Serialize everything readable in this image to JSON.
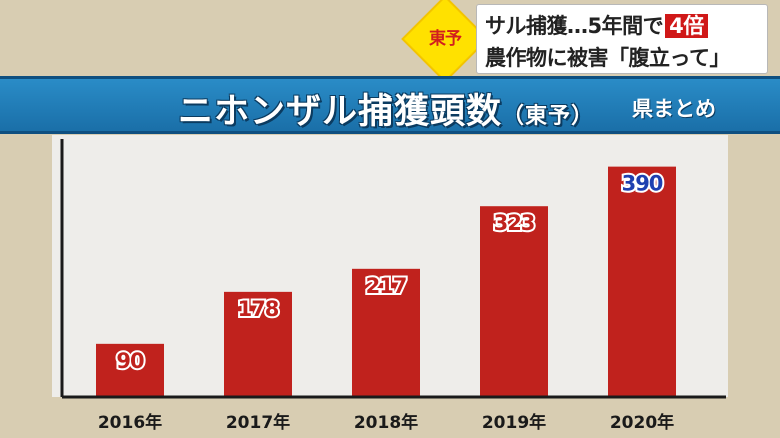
{
  "caption": {
    "region_badge": "東予",
    "line1_prefix": "サル捕獲…5年間で",
    "line1_highlight": "4倍",
    "line2": "農作物に被害「腹立って」"
  },
  "banner": {
    "title_main": "ニホンザル捕獲頭数",
    "title_sub": "（東予）",
    "note": "県まとめ"
  },
  "colors": {
    "bar": "#c0221d",
    "banner": "#1f7cb8",
    "background": "#d8cdb2",
    "plot_background": "#eeedea",
    "highlight_label": "#1f3fb0"
  },
  "chart_data": {
    "type": "bar",
    "title": "ニホンザル捕獲頭数（東予）",
    "categories": [
      "2016年",
      "2017年",
      "2018年",
      "2019年",
      "2020年"
    ],
    "values": [
      90,
      178,
      217,
      323,
      390
    ],
    "data_labels": [
      "90",
      "178",
      "217",
      "323",
      "390"
    ],
    "highlight_index": 4,
    "ylim": [
      0,
      430
    ],
    "grid": false,
    "legend": "none"
  }
}
